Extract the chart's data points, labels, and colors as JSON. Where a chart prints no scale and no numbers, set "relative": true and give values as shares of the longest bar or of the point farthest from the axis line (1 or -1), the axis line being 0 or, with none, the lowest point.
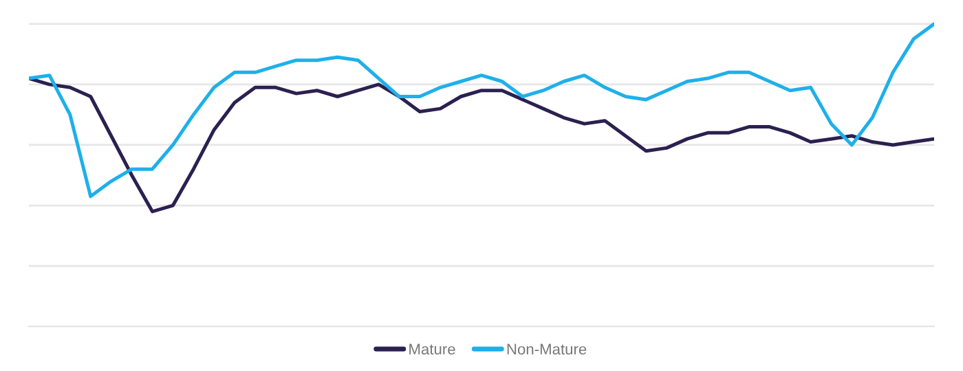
{
  "chart_data": {
    "type": "line",
    "relative": true,
    "grid": "y",
    "legend": "bottom",
    "marker": "none",
    "line_style": "solid",
    "categories": [
      null,
      null,
      null,
      null,
      null,
      null,
      null,
      null,
      null,
      null,
      null,
      null,
      null,
      null,
      null,
      null,
      null,
      null,
      null,
      null,
      null,
      null,
      null,
      null,
      null,
      null,
      null,
      null,
      null,
      null,
      null,
      null,
      null,
      null,
      null,
      null,
      null,
      null,
      null,
      null,
      null,
      null,
      null,
      null,
      null
    ],
    "series": [
      {
        "name": "Mature",
        "color": "#2b2150",
        "values": [
          0.82,
          0.8,
          0.79,
          0.76,
          0.63,
          0.5,
          0.38,
          0.4,
          0.52,
          0.65,
          0.74,
          0.79,
          0.79,
          0.77,
          0.78,
          0.76,
          0.78,
          0.8,
          0.76,
          0.71,
          0.72,
          0.76,
          0.78,
          0.78,
          0.75,
          0.72,
          0.69,
          0.67,
          0.68,
          0.63,
          0.58,
          0.59,
          0.62,
          0.64,
          0.64,
          0.66,
          0.66,
          0.64,
          0.61,
          0.62,
          0.63,
          0.61,
          0.6,
          0.61,
          0.62
        ]
      },
      {
        "name": "Non-Mature",
        "color": "#1eb0ea",
        "values": [
          0.82,
          0.83,
          0.7,
          0.43,
          0.48,
          0.52,
          0.52,
          0.6,
          0.7,
          0.79,
          0.84,
          0.84,
          0.86,
          0.88,
          0.88,
          0.89,
          0.88,
          0.82,
          0.76,
          0.76,
          0.79,
          0.81,
          0.83,
          0.81,
          0.76,
          0.78,
          0.81,
          0.83,
          0.79,
          0.76,
          0.75,
          0.78,
          0.81,
          0.82,
          0.84,
          0.84,
          0.81,
          0.78,
          0.79,
          0.67,
          0.6,
          0.69,
          0.84,
          0.95,
          1.0
        ]
      }
    ]
  }
}
